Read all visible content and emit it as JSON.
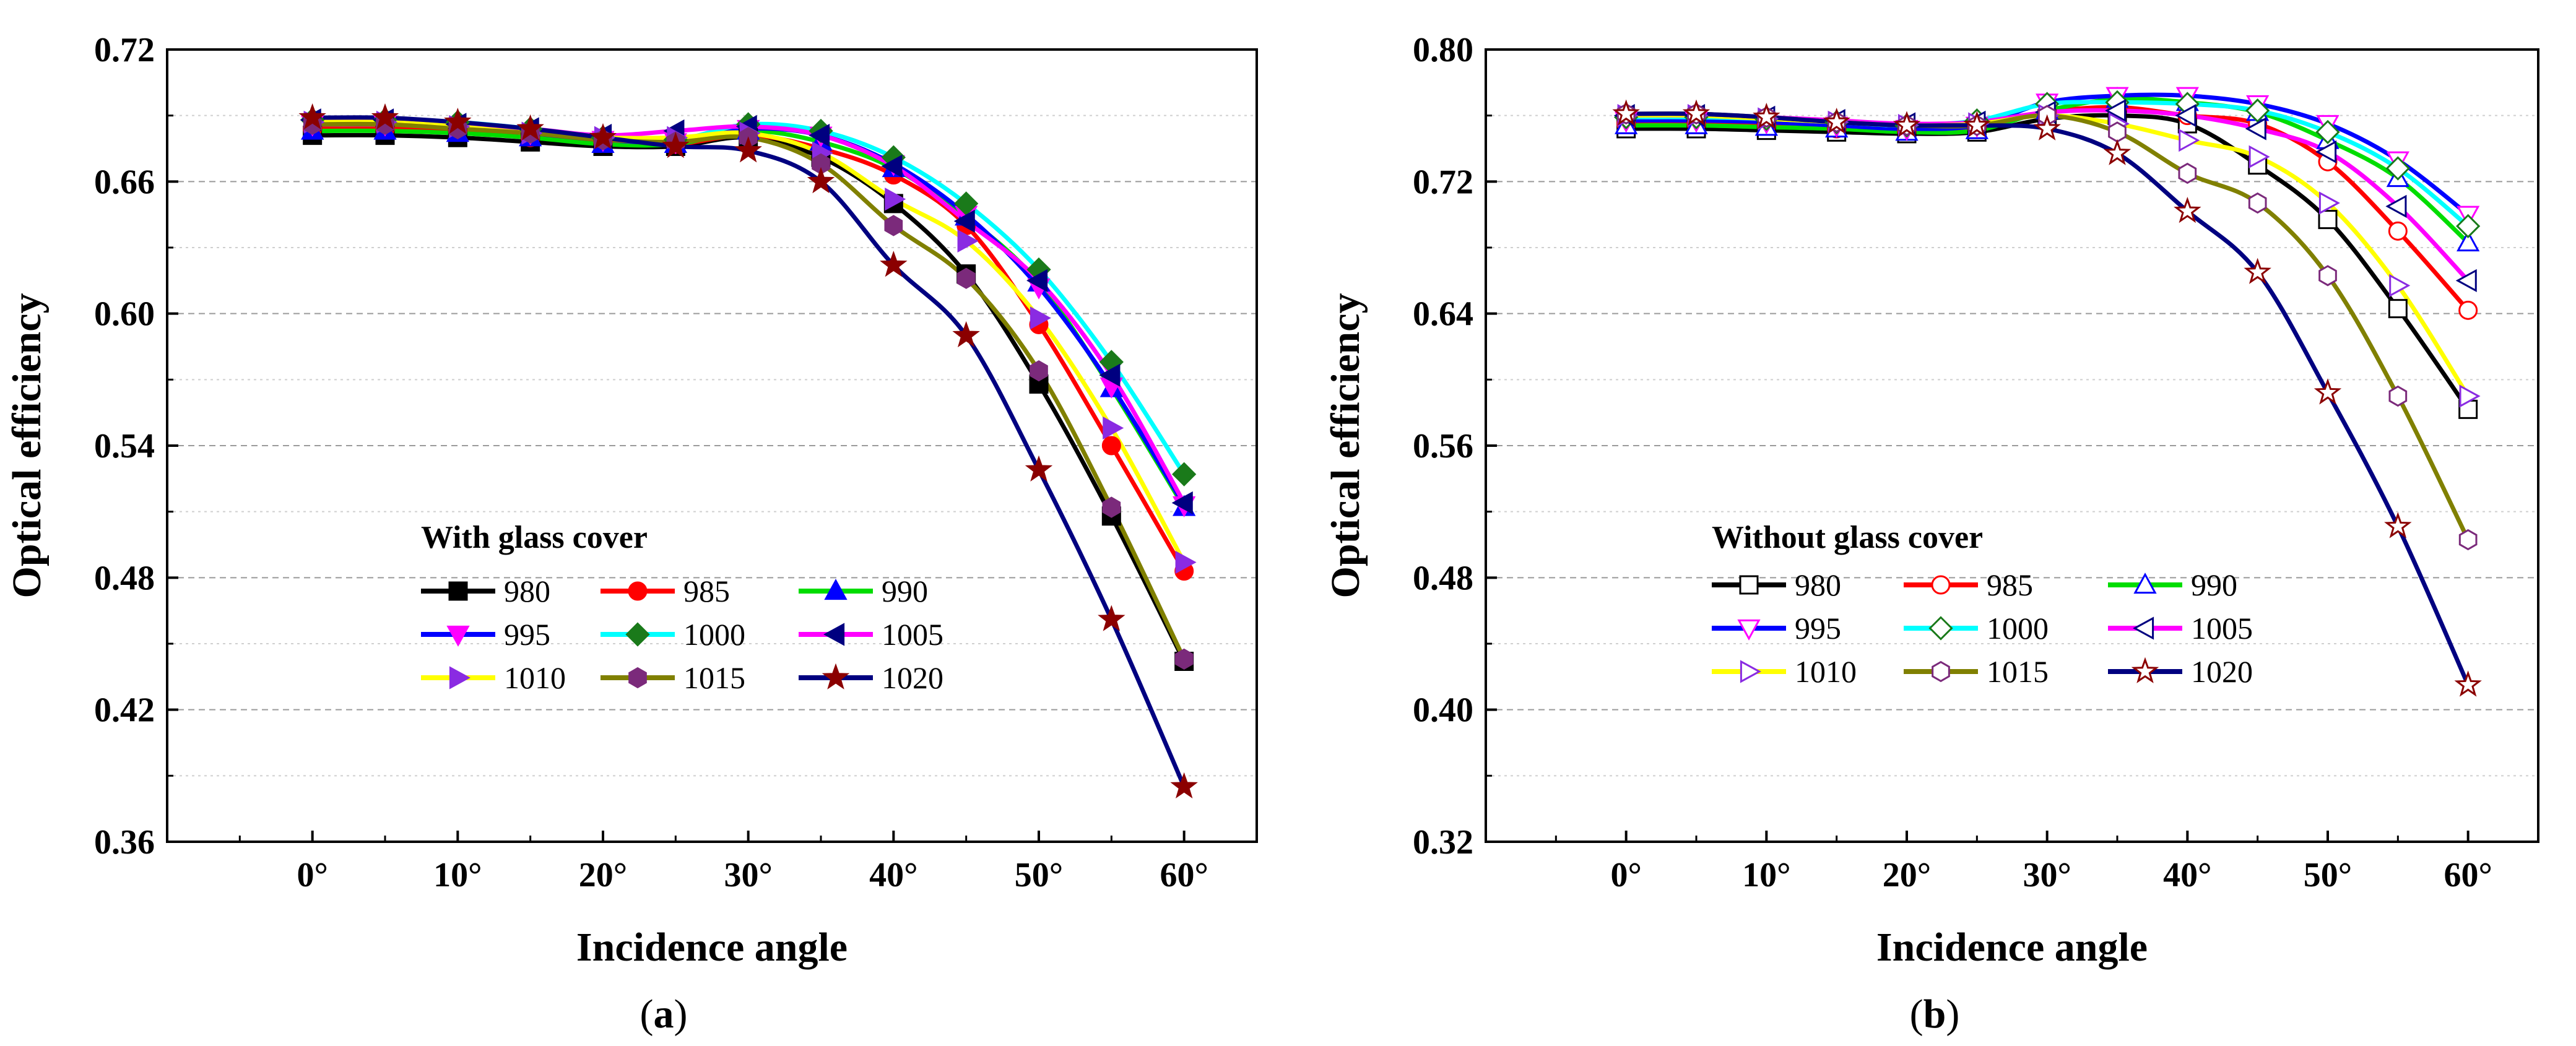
{
  "figure": {
    "caption_a": "a",
    "caption_b": "b"
  },
  "chart_data": [
    {
      "type": "line",
      "panel": "a",
      "legend_title": "With glass cover",
      "xlabel": "Incidence angle",
      "ylabel": "Optical efficiency",
      "x": [
        0,
        5,
        10,
        15,
        20,
        25,
        30,
        35,
        40,
        45,
        50,
        55,
        60
      ],
      "xlim": [
        -10,
        65
      ],
      "ylim": [
        0.36,
        0.72
      ],
      "x_ticks": [
        "0°",
        "10°",
        "20°",
        "30°",
        "40°",
        "50°",
        "60°"
      ],
      "x_tick_values": [
        0,
        10,
        20,
        30,
        40,
        50,
        60
      ],
      "y_ticks": [
        "0.36",
        "0.42",
        "0.48",
        "0.54",
        "0.60",
        "0.66",
        "0.72"
      ],
      "y_tick_values": [
        0.36,
        0.42,
        0.48,
        0.54,
        0.6,
        0.66,
        0.72
      ],
      "series": [
        {
          "name": "980",
          "color": "#000000",
          "marker": "square",
          "filled": true,
          "values": [
            0.681,
            0.681,
            0.68,
            0.678,
            0.676,
            0.676,
            0.68,
            0.671,
            0.65,
            0.618,
            0.568,
            0.508,
            0.442
          ]
        },
        {
          "name": "985",
          "color": "#ff0000",
          "marker": "circle",
          "filled": true,
          "values": [
            0.684,
            0.684,
            0.683,
            0.68,
            0.678,
            0.677,
            0.681,
            0.675,
            0.663,
            0.64,
            0.595,
            0.54,
            0.483
          ]
        },
        {
          "name": "990",
          "color": "#0000ff",
          "marker": "triangle-up",
          "filled": true,
          "values": [
            0.683,
            0.683,
            0.682,
            0.68,
            0.677,
            0.677,
            0.683,
            0.678,
            0.666,
            0.644,
            0.614,
            0.566,
            0.512
          ]
        },
        {
          "name": "995",
          "color": "#ff00ff",
          "marker": "triangle-down",
          "filled": true,
          "values": [
            0.686,
            0.686,
            0.685,
            0.682,
            0.679,
            0.678,
            0.684,
            0.681,
            0.668,
            0.645,
            0.612,
            0.567,
            0.513
          ]
        },
        {
          "name": "1000",
          "color": "#1a7a1a",
          "marker": "diamond",
          "filled": true,
          "values": [
            0.688,
            0.688,
            0.687,
            0.684,
            0.68,
            0.679,
            0.686,
            0.683,
            0.671,
            0.65,
            0.62,
            0.578,
            0.527
          ]
        },
        {
          "name": "1005",
          "color": "#000080",
          "marker": "triangle-left",
          "filled": true,
          "values": [
            0.688,
            0.688,
            0.686,
            0.684,
            0.681,
            0.683,
            0.685,
            0.681,
            0.667,
            0.642,
            0.615,
            0.572,
            0.514
          ]
        },
        {
          "name": "1010",
          "color": "#8a2be2",
          "marker": "triangle-right",
          "filled": true,
          "values": [
            0.687,
            0.687,
            0.685,
            0.682,
            0.68,
            0.68,
            0.682,
            0.673,
            0.652,
            0.633,
            0.598,
            0.548,
            0.487
          ]
        },
        {
          "name": "1015",
          "color": "#7b2a7b",
          "marker": "hexagon",
          "filled": true,
          "values": [
            0.686,
            0.686,
            0.684,
            0.682,
            0.679,
            0.678,
            0.68,
            0.668,
            0.64,
            0.616,
            0.574,
            0.512,
            0.443
          ]
        },
        {
          "name": "1020",
          "color": "#8b0000",
          "marker": "star",
          "filled": true,
          "values": [
            0.689,
            0.689,
            0.687,
            0.684,
            0.68,
            0.676,
            0.674,
            0.66,
            0.622,
            0.59,
            0.529,
            0.461,
            0.385
          ]
        }
      ],
      "line_colors": [
        "#000000",
        "#ff0000",
        "#00dd00",
        "#0000ff",
        "#00ffff",
        "#ff00ff",
        "#ffff00",
        "#808000",
        "#000080"
      ]
    },
    {
      "type": "line",
      "panel": "b",
      "legend_title": "Without glass cover",
      "xlabel": "Incidence angle",
      "ylabel": "Optical efficiency",
      "x": [
        0,
        5,
        10,
        15,
        20,
        25,
        30,
        35,
        40,
        45,
        50,
        55,
        60
      ],
      "xlim": [
        -10,
        65
      ],
      "ylim": [
        0.32,
        0.8
      ],
      "x_ticks": [
        "0°",
        "10°",
        "20°",
        "30°",
        "40°",
        "50°",
        "60°"
      ],
      "x_tick_values": [
        0,
        10,
        20,
        30,
        40,
        50,
        60
      ],
      "y_ticks": [
        "0.32",
        "0.40",
        "0.48",
        "0.56",
        "0.64",
        "0.72",
        "0.80"
      ],
      "y_tick_values": [
        0.32,
        0.4,
        0.48,
        0.56,
        0.64,
        0.72,
        0.8
      ],
      "series": [
        {
          "name": "980",
          "color": "#000000",
          "marker": "square",
          "filled": false,
          "values": [
            0.752,
            0.752,
            0.751,
            0.75,
            0.749,
            0.75,
            0.758,
            0.76,
            0.755,
            0.73,
            0.697,
            0.643,
            0.582
          ]
        },
        {
          "name": "985",
          "color": "#ff0000",
          "marker": "circle",
          "filled": false,
          "values": [
            0.755,
            0.755,
            0.754,
            0.752,
            0.751,
            0.753,
            0.762,
            0.765,
            0.76,
            0.755,
            0.732,
            0.69,
            0.642
          ]
        },
        {
          "name": "990",
          "color": "#0000ff",
          "marker": "triangle-up",
          "filled": false,
          "values": [
            0.754,
            0.754,
            0.753,
            0.752,
            0.75,
            0.751,
            0.763,
            0.77,
            0.768,
            0.762,
            0.745,
            0.722,
            0.683
          ]
        },
        {
          "name": "995",
          "color": "#ff00ff",
          "marker": "triangle-down",
          "filled": false,
          "values": [
            0.757,
            0.757,
            0.756,
            0.754,
            0.752,
            0.754,
            0.768,
            0.772,
            0.772,
            0.767,
            0.755,
            0.733,
            0.7
          ]
        },
        {
          "name": "1000",
          "color": "#1a7a1a",
          "marker": "diamond",
          "filled": false,
          "values": [
            0.759,
            0.759,
            0.758,
            0.756,
            0.754,
            0.757,
            0.767,
            0.768,
            0.767,
            0.763,
            0.75,
            0.728,
            0.693
          ]
        },
        {
          "name": "1005",
          "color": "#000080",
          "marker": "triangle-left",
          "filled": false,
          "values": [
            0.76,
            0.76,
            0.759,
            0.757,
            0.755,
            0.756,
            0.762,
            0.763,
            0.76,
            0.752,
            0.738,
            0.705,
            0.66
          ]
        },
        {
          "name": "1010",
          "color": "#8a2be2",
          "marker": "triangle-right",
          "filled": false,
          "values": [
            0.76,
            0.76,
            0.758,
            0.756,
            0.754,
            0.755,
            0.76,
            0.755,
            0.745,
            0.735,
            0.707,
            0.657,
            0.59
          ]
        },
        {
          "name": "1015",
          "color": "#7b2a7b",
          "marker": "hexagon",
          "filled": false,
          "values": [
            0.761,
            0.761,
            0.759,
            0.756,
            0.754,
            0.754,
            0.76,
            0.75,
            0.725,
            0.707,
            0.663,
            0.59,
            0.503
          ]
        },
        {
          "name": "1020",
          "color": "#8b0000",
          "marker": "star",
          "filled": false,
          "values": [
            0.761,
            0.761,
            0.759,
            0.756,
            0.754,
            0.754,
            0.752,
            0.737,
            0.702,
            0.665,
            0.592,
            0.511,
            0.415
          ]
        }
      ],
      "line_colors": [
        "#000000",
        "#ff0000",
        "#00dd00",
        "#0000ff",
        "#00ffff",
        "#ff00ff",
        "#ffff00",
        "#808000",
        "#000080"
      ]
    }
  ]
}
